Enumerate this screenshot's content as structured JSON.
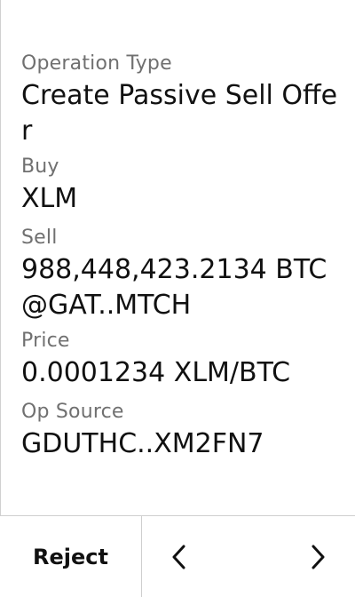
{
  "fields": [
    {
      "label": "Operation Type",
      "value": "Create Passive Sell Offer"
    },
    {
      "label": "Buy",
      "value": "XLM"
    },
    {
      "label": "Sell",
      "value": "988,448,423.2134 BTC@GAT..MTCH"
    },
    {
      "label": "Price",
      "value": "0.0001234 XLM/BTC"
    },
    {
      "label": "Op Source",
      "value": "GDUTHC..XM2FN7"
    }
  ],
  "footer": {
    "reject_label": "Reject",
    "prev_icon": "chevron-left-icon",
    "next_icon": "chevron-right-icon"
  }
}
